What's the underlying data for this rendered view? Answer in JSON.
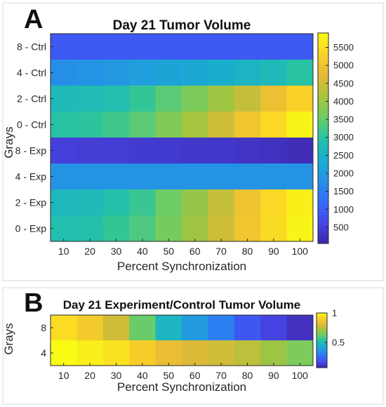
{
  "panels": [
    {
      "letter": "A"
    },
    {
      "letter": "B"
    }
  ],
  "chart_data": [
    {
      "type": "heatmap",
      "title": "Day 21 Tumor Volume",
      "xlabel": "Percent Synchronization",
      "ylabel": "Grays",
      "x": [
        "10",
        "20",
        "30",
        "40",
        "50",
        "60",
        "70",
        "80",
        "90",
        "100"
      ],
      "y": [
        "8 - Ctrl",
        "4 - Ctrl",
        "2 - Ctrl",
        "0 - Ctrl",
        "8 - Exp",
        "4 - Exp",
        "2 - Exp",
        "0 - Exp"
      ],
      "values": [
        [
          900,
          900,
          900,
          900,
          900,
          900,
          900,
          900,
          900,
          900
        ],
        [
          1750,
          1850,
          1950,
          2050,
          2150,
          2250,
          2400,
          2550,
          2700,
          3000
        ],
        [
          2700,
          2750,
          2850,
          3100,
          3400,
          3700,
          4050,
          4400,
          4900,
          5300
        ],
        [
          3000,
          3050,
          3200,
          3400,
          3750,
          4100,
          4500,
          5000,
          5400,
          5800
        ],
        [
          500,
          450,
          450,
          400,
          400,
          350,
          350,
          300,
          250,
          200
        ],
        [
          1850,
          1850,
          1850,
          1850,
          1850,
          1850,
          1850,
          1850,
          1850,
          1850
        ],
        [
          2650,
          2700,
          2900,
          3150,
          3550,
          3950,
          4400,
          4950,
          5400,
          5750
        ],
        [
          2850,
          2900,
          3100,
          3300,
          3650,
          4050,
          4500,
          5000,
          5450,
          5800
        ]
      ],
      "clim": [
        50,
        5900
      ],
      "colorbar_ticks": [
        500,
        1000,
        1500,
        2000,
        2500,
        3000,
        3500,
        4000,
        4500,
        5000,
        5500
      ],
      "colormap": "parula",
      "grid": false
    },
    {
      "type": "heatmap",
      "title": "Day 21 Experiment/Control Tumor Volume",
      "xlabel": "Percent Synchronization",
      "ylabel": "Grays",
      "x": [
        "10",
        "20",
        "30",
        "40",
        "50",
        "60",
        "70",
        "80",
        "90",
        "100"
      ],
      "y": [
        "8",
        "4"
      ],
      "values": [
        [
          0.93,
          0.88,
          0.78,
          0.62,
          0.47,
          0.38,
          0.3,
          0.2,
          0.15,
          0.1
        ],
        [
          1.0,
          0.97,
          0.94,
          0.89,
          0.83,
          0.8,
          0.78,
          0.75,
          0.7,
          0.65
        ]
      ],
      "clim": [
        0.07,
        1.0
      ],
      "colorbar_ticks": [
        "0.5",
        "1"
      ],
      "colorbar_tick_values": [
        0.5,
        1.0
      ],
      "colormap": "parula",
      "grid": false
    }
  ]
}
